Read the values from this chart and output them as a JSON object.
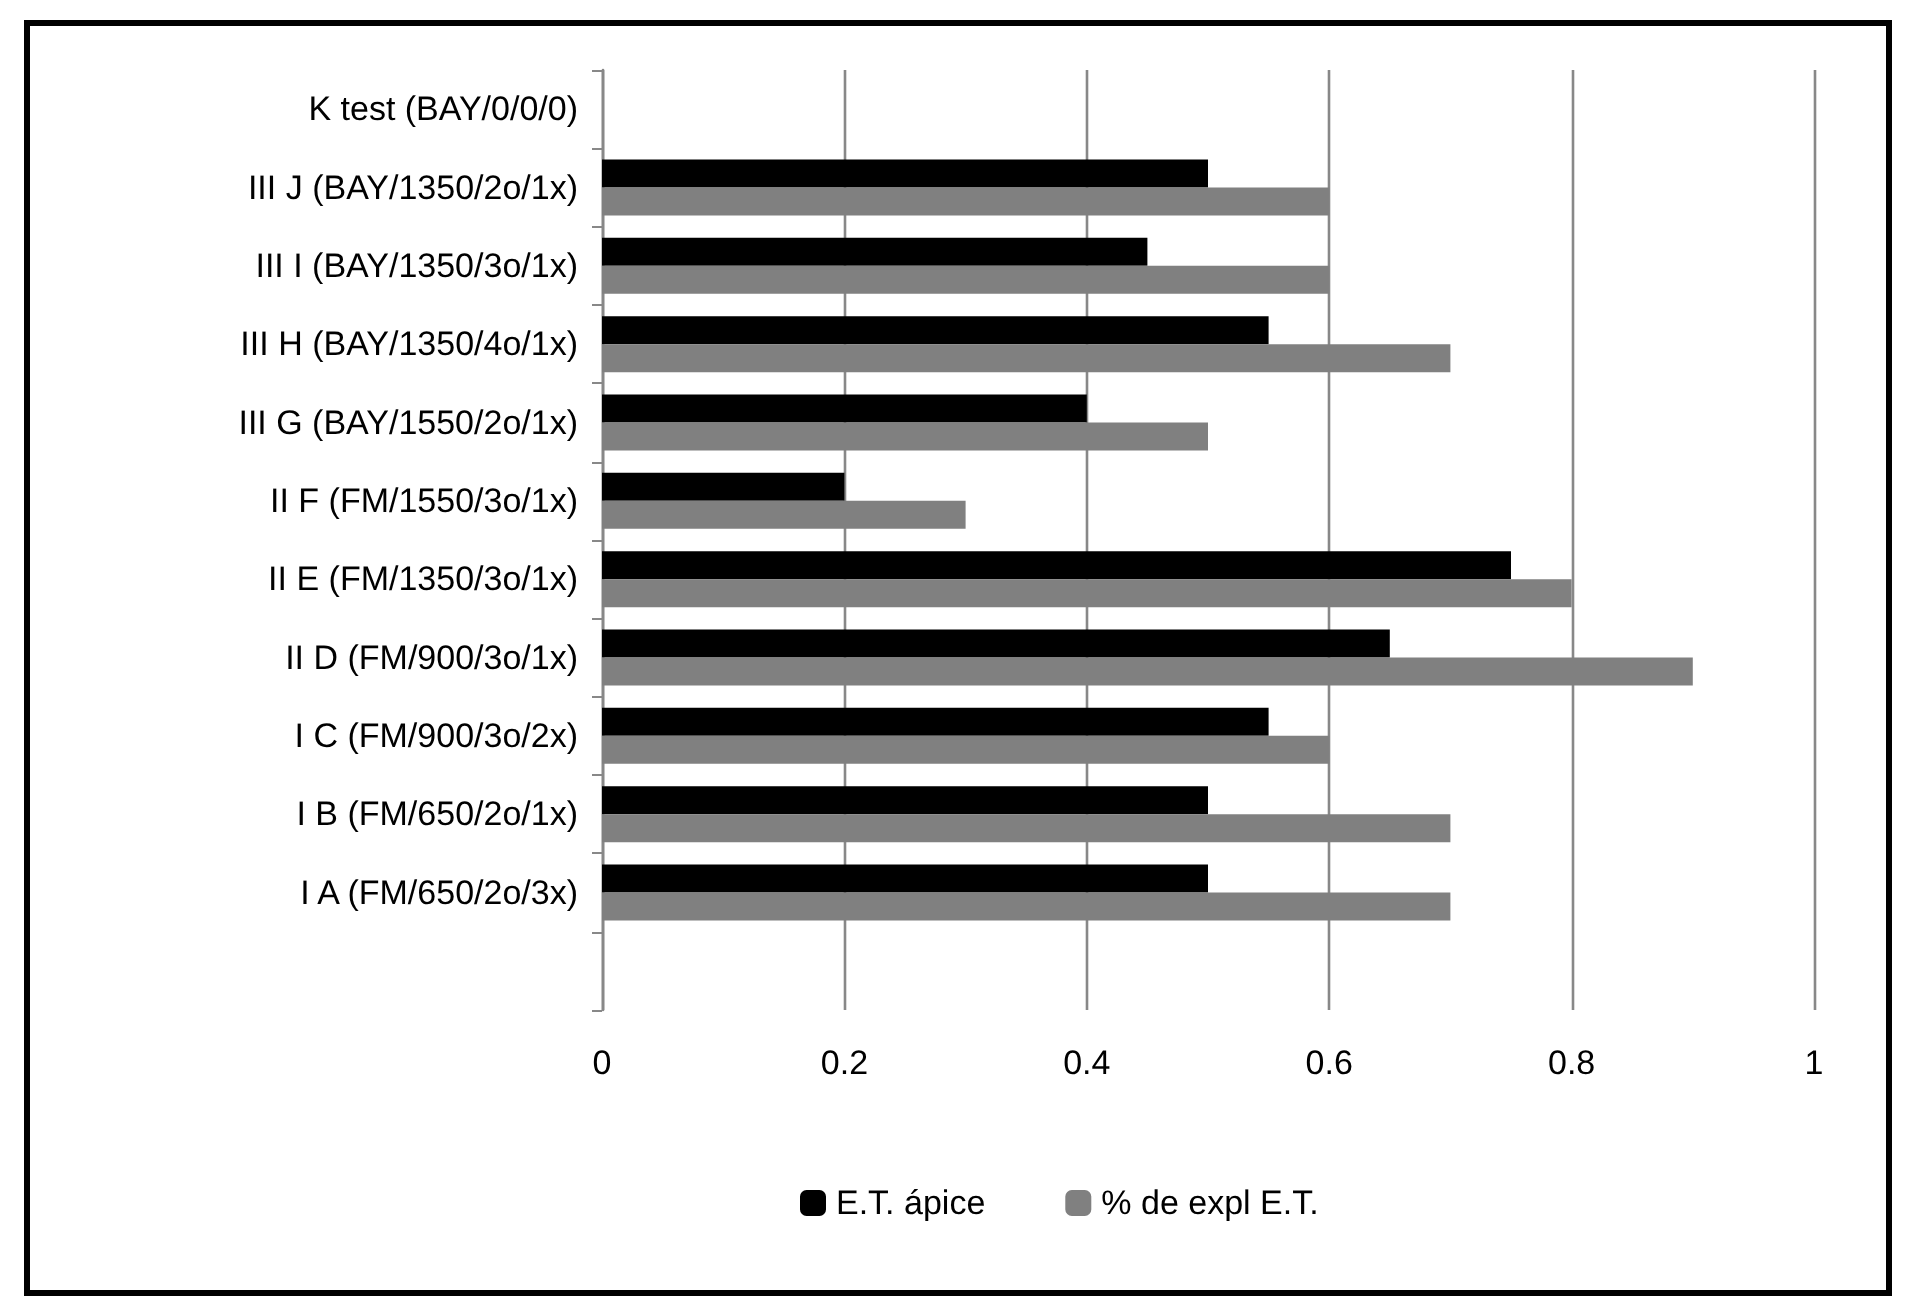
{
  "chart_data": {
    "type": "bar",
    "orientation": "horizontal",
    "categories": [
      "K test (BAY/0/0/0)",
      "III J (BAY/1350/2o/1x)",
      "III I (BAY/1350/3o/1x)",
      "III H (BAY/1350/4o/1x)",
      "III G (BAY/1550/2o/1x)",
      "II F (FM/1550/3o/1x)",
      "II E (FM/1350/3o/1x)",
      "II D (FM/900/3o/1x)",
      "I C (FM/900/3o/2x)",
      "I B (FM/650/2o/1x)",
      "I A (FM/650/2o/3x)",
      null
    ],
    "series": [
      {
        "name": "E.T. ápice",
        "color": "#000000",
        "values": [
          null,
          0.5,
          0.45,
          0.55,
          0.4,
          0.2,
          0.75,
          0.65,
          0.55,
          0.5,
          0.5,
          null
        ]
      },
      {
        "name": "% de expl E.T.",
        "color": "#808080",
        "values": [
          null,
          0.6,
          0.6,
          0.7,
          0.5,
          0.3,
          0.8,
          0.9,
          0.6,
          0.7,
          0.7,
          null
        ]
      }
    ],
    "xlim": [
      0,
      1
    ],
    "xticks": [
      0,
      0.2,
      0.4,
      0.6,
      0.8,
      1
    ],
    "grid": "x",
    "legend": "bottom"
  }
}
